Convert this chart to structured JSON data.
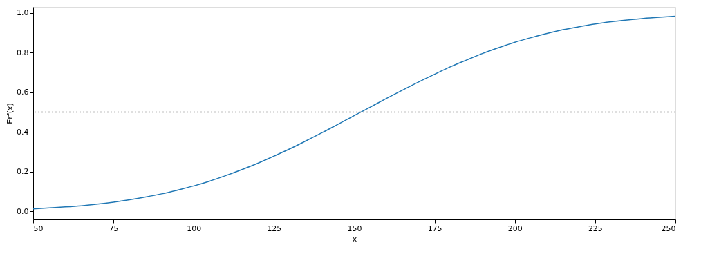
{
  "chart_data": {
    "type": "line",
    "xlabel": "x",
    "ylabel": "Erf(x)",
    "x": [
      50,
      55,
      60,
      65,
      70,
      75,
      80,
      85,
      90,
      95,
      100,
      105,
      110,
      115,
      120,
      125,
      130,
      135,
      140,
      145,
      150,
      155,
      160,
      165,
      170,
      175,
      180,
      185,
      190,
      195,
      200,
      205,
      210,
      215,
      220,
      225,
      230,
      235,
      240,
      245,
      250
    ],
    "series": [
      {
        "color": "#1f77b4",
        "values": [
          0.013,
          0.018,
          0.023,
          0.029,
          0.037,
          0.047,
          0.059,
          0.073,
          0.089,
          0.108,
          0.129,
          0.153,
          0.181,
          0.211,
          0.243,
          0.279,
          0.316,
          0.356,
          0.397,
          0.44,
          0.483,
          0.526,
          0.569,
          0.611,
          0.652,
          0.691,
          0.729,
          0.763,
          0.796,
          0.825,
          0.852,
          0.875,
          0.896,
          0.915,
          0.93,
          0.944,
          0.955,
          0.964,
          0.972,
          0.978,
          0.983
        ]
      }
    ],
    "xlim": [
      50,
      250
    ],
    "xticks": [
      50,
      75,
      100,
      125,
      150,
      175,
      200,
      225,
      250
    ],
    "ylim": [
      -0.04,
      1.03
    ],
    "yticks": [
      {
        "value": 0,
        "label": "0.0"
      },
      {
        "value": 0.2,
        "label": "0.2"
      },
      {
        "value": 0.4,
        "label": "0.4"
      },
      {
        "value": 0.6,
        "label": "0.6"
      },
      {
        "value": 0.8,
        "label": "0.8"
      },
      {
        "value": 1,
        "label": "1.0"
      }
    ],
    "ref_lines": [
      {
        "axis": "y",
        "value": 0.5,
        "label": null,
        "color": "#808080",
        "line_style": "dotted"
      }
    ],
    "grid": false
  }
}
